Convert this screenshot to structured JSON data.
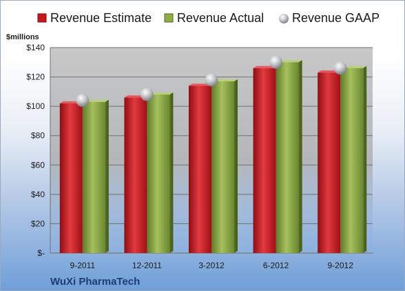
{
  "chart_data": {
    "type": "bar",
    "categories": [
      "9-2011",
      "12-2011",
      "3-2012",
      "6-2012",
      "9-2012"
    ],
    "series": [
      {
        "name": "Revenue Estimate",
        "values": [
          102,
          106,
          114,
          126,
          123
        ],
        "color": "#c8161d"
      },
      {
        "name": "Revenue Actual",
        "values": [
          103,
          108,
          117,
          130,
          126
        ],
        "color": "#7d9a3a"
      },
      {
        "name": "Revenue GAAP",
        "values": [
          104,
          108,
          118,
          130,
          126
        ],
        "color": "#b9bcc2",
        "marker": "sphere"
      }
    ],
    "ylabel": "$millions",
    "ylim": [
      0,
      140
    ],
    "yticks": [
      0,
      20,
      40,
      60,
      80,
      100,
      120,
      140
    ],
    "ytick_labels": [
      "$-",
      "$20",
      "$40",
      "$60",
      "$80",
      "$100",
      "$120",
      "$140"
    ],
    "grid": true,
    "legend_position": "top"
  },
  "footer": {
    "company": "WuXi PharmaTech"
  }
}
